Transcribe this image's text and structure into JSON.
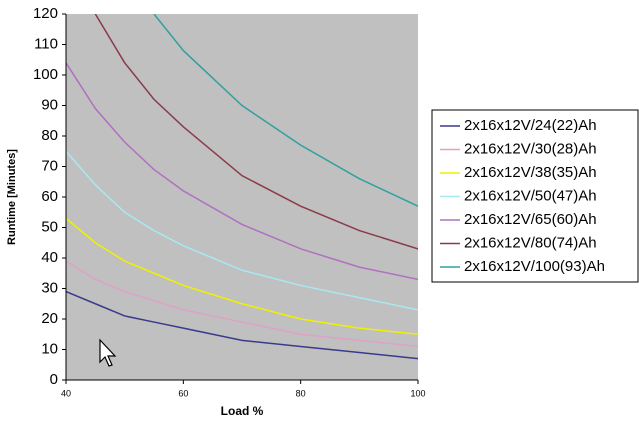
{
  "chart_data": {
    "type": "line",
    "xlabel": "Load %",
    "ylabel": "Runtime [Minutes]",
    "x": [
      40,
      45,
      50,
      55,
      60,
      70,
      80,
      90,
      100
    ],
    "series": [
      {
        "name": "2x16x12V/24(22)Ah",
        "color": "#3a3a8c",
        "values": [
          29,
          25,
          21,
          19,
          17,
          13,
          11,
          9,
          7
        ]
      },
      {
        "name": "2x16x12V/30(28)Ah",
        "color": "#e0a0c8",
        "values": [
          39,
          33,
          29,
          26,
          23,
          19,
          15,
          13,
          11
        ]
      },
      {
        "name": "2x16x12V/38(35)Ah",
        "color": "#f0f000",
        "values": [
          53,
          45,
          39,
          35,
          31,
          25,
          20,
          17,
          15
        ]
      },
      {
        "name": "2x16x12V/50(47)Ah",
        "color": "#a8e8f0",
        "values": [
          75,
          64,
          55,
          49,
          44,
          36,
          31,
          27,
          23
        ]
      },
      {
        "name": "2x16x12V/65(60)Ah",
        "color": "#b070c0",
        "values": [
          104,
          89,
          78,
          69,
          62,
          51,
          43,
          37,
          33
        ]
      },
      {
        "name": "2x16x12V/80(74)Ah",
        "color": "#8b3a4a",
        "values": [
          null,
          120,
          104,
          92,
          83,
          67,
          57,
          49,
          43
        ]
      },
      {
        "name": "2x16x12V/100(93)Ah",
        "color": "#30a0a0",
        "values": [
          null,
          null,
          null,
          120,
          108,
          90,
          77,
          66,
          57
        ]
      }
    ],
    "xlim": [
      40,
      100
    ],
    "xticks": [
      40,
      60,
      80,
      100
    ],
    "ylim": [
      0,
      120
    ],
    "yticks": [
      0,
      10,
      20,
      30,
      40,
      50,
      60,
      70,
      80,
      90,
      100,
      110,
      120
    ],
    "legend": "right"
  }
}
